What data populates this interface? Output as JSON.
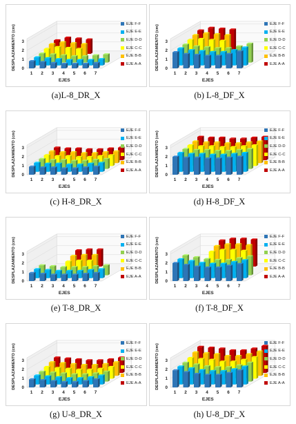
{
  "colors": {
    "EJE F-F": "#2e75b6",
    "EJE E-E": "#00b0f0",
    "EJE D-D": "#92d050",
    "EJE C-C": "#ffff00",
    "EJE B-B": "#ffc000",
    "EJE A-A": "#c00000"
  },
  "chart_data": [
    {
      "type": "bar",
      "caption": "(a)L-8_DR_X",
      "ylabel": "DESPLAZAMIENTO (cm)",
      "xlabel": "EJES",
      "y_ticks": [
        "0",
        "1",
        "2",
        "3"
      ],
      "categories": [
        "1",
        "2",
        "3",
        "4",
        "5",
        "6",
        "7"
      ],
      "legend": [
        "EJE F-F",
        "EJE E-E",
        "EJE D-D",
        "EJE C-C",
        "EJE B-B",
        "EJE A-A"
      ],
      "series": [
        {
          "name": "EJE F-F",
          "values": [
            0.8,
            0.7,
            0.6,
            0.5,
            0.5,
            0.5,
            0.6
          ]
        },
        {
          "name": "EJE E-E",
          "values": [
            0.9,
            0.8,
            0.7,
            0.6,
            0.6,
            0.6,
            0.7
          ]
        },
        {
          "name": "EJE D-D",
          "values": [
            1.0,
            0.9,
            0.8,
            0.7,
            0.7,
            0.8,
            0.9
          ]
        },
        {
          "name": "EJE C-C",
          "values": [
            1.2,
            1.4,
            1.3,
            1.2,
            0,
            0,
            0
          ]
        },
        {
          "name": "EJE B-B",
          "values": [
            1.4,
            1.6,
            1.5,
            1.4,
            0,
            0,
            0
          ]
        },
        {
          "name": "EJE A-A",
          "values": [
            1.5,
            1.8,
            1.7,
            1.6,
            0,
            0,
            0
          ]
        }
      ]
    },
    {
      "type": "bar",
      "caption": "(b) L-8_DF_X",
      "ylabel": "DESPLAZAMIENTO (cm)",
      "xlabel": "EJES",
      "y_ticks": [
        "0",
        "1",
        "2",
        "3"
      ],
      "categories": [
        "1",
        "2",
        "3",
        "4",
        "5",
        "6",
        "7"
      ],
      "legend": [
        "EJE F-F",
        "EJE E-E",
        "EJE D-D",
        "EJE C-C",
        "EJE B-B",
        "EJE A-A"
      ],
      "series": [
        {
          "name": "EJE F-F",
          "values": [
            1.8,
            1.6,
            1.5,
            1.4,
            1.4,
            1.6,
            1.9
          ]
        },
        {
          "name": "EJE E-E",
          "values": [
            1.9,
            1.7,
            1.6,
            1.5,
            1.5,
            1.7,
            2.0
          ]
        },
        {
          "name": "EJE D-D",
          "values": [
            2.0,
            1.8,
            1.7,
            1.6,
            1.6,
            1.8,
            2.1
          ]
        },
        {
          "name": "EJE C-C",
          "values": [
            2.2,
            2.3,
            2.2,
            2.1,
            0,
            0,
            0
          ]
        },
        {
          "name": "EJE B-B",
          "values": [
            2.4,
            2.6,
            2.5,
            2.4,
            0,
            0,
            0
          ]
        },
        {
          "name": "EJE A-A",
          "values": [
            2.6,
            2.9,
            2.8,
            2.7,
            0,
            0,
            0
          ]
        }
      ]
    },
    {
      "type": "bar",
      "caption": "(c) H-8_DR_X",
      "ylabel": "DESPLAZAMIENTO (cm)",
      "xlabel": "EJES",
      "y_ticks": [
        "0",
        "1",
        "2",
        "3"
      ],
      "categories": [
        "1",
        "2",
        "3",
        "4",
        "5",
        "6",
        "7"
      ],
      "legend": [
        "EJE F-F",
        "EJE E-E",
        "EJE D-D",
        "EJE C-C",
        "EJE B-B",
        "EJE A-A"
      ],
      "series": [
        {
          "name": "EJE F-F",
          "values": [
            0.9,
            0.8,
            0.8,
            0.7,
            0.7,
            0.8,
            0.9
          ]
        },
        {
          "name": "EJE E-E",
          "values": [
            1.0,
            0.9,
            0.9,
            0.8,
            0.8,
            0.9,
            1.0
          ]
        },
        {
          "name": "EJE D-D",
          "values": [
            1.1,
            1.0,
            1.0,
            0.9,
            0.9,
            1.0,
            1.1
          ]
        },
        {
          "name": "EJE C-C",
          "values": [
            1.2,
            1.1,
            1.1,
            1.0,
            1.0,
            1.1,
            1.2
          ]
        },
        {
          "name": "EJE B-B",
          "values": [
            1.3,
            1.2,
            1.2,
            1.1,
            1.1,
            1.2,
            1.3
          ]
        },
        {
          "name": "EJE A-A",
          "values": [
            1.4,
            1.3,
            1.3,
            1.2,
            1.2,
            1.3,
            1.4
          ]
        }
      ]
    },
    {
      "type": "bar",
      "caption": "(d) H-8_DF_X",
      "ylabel": "DESPLAZAMIENTO (cm)",
      "xlabel": "EJES",
      "y_ticks": [
        "0",
        "1",
        "2",
        "3"
      ],
      "categories": [
        "1",
        "2",
        "3",
        "4",
        "5",
        "6",
        "7"
      ],
      "legend": [
        "EJE F-F",
        "EJE E-E",
        "EJE D-D",
        "EJE C-C",
        "EJE B-B",
        "EJE A-A"
      ],
      "series": [
        {
          "name": "EJE F-F",
          "values": [
            2.0,
            1.9,
            1.9,
            1.8,
            1.8,
            1.9,
            2.0
          ]
        },
        {
          "name": "EJE E-E",
          "values": [
            2.1,
            2.0,
            2.0,
            1.9,
            1.9,
            2.0,
            2.1
          ]
        },
        {
          "name": "EJE D-D",
          "values": [
            2.2,
            2.1,
            2.1,
            2.0,
            2.0,
            2.1,
            2.2
          ]
        },
        {
          "name": "EJE C-C",
          "values": [
            2.3,
            2.2,
            2.2,
            2.1,
            2.1,
            2.2,
            2.3
          ]
        },
        {
          "name": "EJE B-B",
          "values": [
            2.4,
            2.3,
            2.3,
            2.2,
            2.2,
            2.3,
            2.4
          ]
        },
        {
          "name": "EJE A-A",
          "values": [
            2.6,
            2.5,
            2.5,
            2.4,
            2.4,
            2.5,
            2.6
          ]
        }
      ]
    },
    {
      "type": "bar",
      "caption": "(e) T-8_DR_X",
      "ylabel": "DESPLAZAMIENTO (cm)",
      "xlabel": "EJES",
      "y_ticks": [
        "0",
        "1",
        "2",
        "3"
      ],
      "categories": [
        "1",
        "2",
        "3",
        "4",
        "5",
        "6",
        "7"
      ],
      "legend": [
        "EJE F-F",
        "EJE E-E",
        "EJE D-D",
        "EJE C-C",
        "EJE B-B",
        "EJE A-A"
      ],
      "series": [
        {
          "name": "EJE F-F",
          "values": [
            0.9,
            0.8,
            0.7,
            0.7,
            0.7,
            0.8,
            0.9
          ]
        },
        {
          "name": "EJE E-E",
          "values": [
            1.0,
            0.9,
            0.8,
            0.8,
            0.8,
            0.9,
            1.0
          ]
        },
        {
          "name": "EJE D-D",
          "values": [
            1.1,
            1.0,
            0.9,
            0.9,
            0.9,
            1.0,
            1.1
          ]
        },
        {
          "name": "EJE C-C",
          "values": [
            0,
            0,
            1.2,
            1.3,
            1.3,
            0,
            0
          ]
        },
        {
          "name": "EJE B-B",
          "values": [
            0,
            0,
            1.5,
            1.6,
            1.6,
            0,
            0
          ]
        },
        {
          "name": "EJE A-A",
          "values": [
            0,
            0,
            1.8,
            1.9,
            1.9,
            0,
            0
          ]
        }
      ]
    },
    {
      "type": "bar",
      "caption": "(f) T-8_DF_X",
      "ylabel": "DESPLAZAMIENTO (cm)",
      "xlabel": "EJES",
      "y_ticks": [
        "0",
        "1",
        "2",
        "3"
      ],
      "categories": [
        "1",
        "2",
        "3",
        "4",
        "5",
        "6",
        "7"
      ],
      "legend": [
        "EJE F-F",
        "EJE E-E",
        "EJE D-D",
        "EJE C-C",
        "EJE B-B",
        "EJE A-A"
      ],
      "series": [
        {
          "name": "EJE F-F",
          "values": [
            2.0,
            1.8,
            1.6,
            1.5,
            1.5,
            1.7,
            1.9
          ]
        },
        {
          "name": "EJE E-E",
          "values": [
            2.1,
            1.9,
            1.7,
            1.6,
            1.6,
            1.8,
            2.0
          ]
        },
        {
          "name": "EJE D-D",
          "values": [
            2.2,
            2.0,
            1.8,
            1.7,
            1.7,
            1.9,
            2.1
          ]
        },
        {
          "name": "EJE C-C",
          "values": [
            0,
            0,
            2.3,
            2.5,
            2.5,
            2.4,
            0
          ]
        },
        {
          "name": "EJE B-B",
          "values": [
            0,
            0,
            2.6,
            2.8,
            2.8,
            2.7,
            0
          ]
        },
        {
          "name": "EJE A-A",
          "values": [
            0,
            0,
            2.9,
            3.1,
            3.1,
            3.0,
            0
          ]
        }
      ]
    },
    {
      "type": "bar",
      "caption": "(g) U-8_DR_X",
      "ylabel": "DESPLAZAMIENTO (cm)",
      "xlabel": "EJES",
      "y_ticks": [
        "0",
        "1",
        "2",
        "3"
      ],
      "categories": [
        "1",
        "2",
        "3",
        "4",
        "5",
        "6",
        "7"
      ],
      "legend": [
        "EJE F-F",
        "EJE E-E",
        "EJE D-D",
        "EJE C-C",
        "EJE B-B",
        "EJE A-A"
      ],
      "series": [
        {
          "name": "EJE F-F",
          "values": [
            0.9,
            0.8,
            0.7,
            0.6,
            0.6,
            0.7,
            0.9
          ]
        },
        {
          "name": "EJE E-E",
          "values": [
            1.0,
            0.9,
            0.8,
            0.7,
            0.7,
            0.8,
            1.0
          ]
        },
        {
          "name": "EJE D-D",
          "values": [
            1.1,
            1.0,
            0.9,
            0.8,
            0.8,
            0.9,
            1.1
          ]
        },
        {
          "name": "EJE C-C",
          "values": [
            1.3,
            1.2,
            1.1,
            1.0,
            1.0,
            1.1,
            1.3
          ]
        },
        {
          "name": "EJE B-B",
          "values": [
            1.5,
            1.4,
            1.3,
            1.2,
            1.2,
            1.3,
            1.5
          ]
        },
        {
          "name": "EJE A-A",
          "values": [
            1.7,
            1.6,
            1.5,
            1.4,
            1.4,
            1.5,
            1.7
          ]
        }
      ]
    },
    {
      "type": "bar",
      "caption": "(h) U-8_DF_X",
      "ylabel": "DESPLAZAMIENTO (cm)",
      "xlabel": "EJES",
      "y_ticks": [
        "0",
        "1",
        "2",
        "3"
      ],
      "categories": [
        "1",
        "2",
        "3",
        "4",
        "5",
        "6",
        "7"
      ],
      "legend": [
        "EJE F-F",
        "EJE E-E",
        "EJE D-D",
        "EJE C-C",
        "EJE B-B",
        "EJE A-A"
      ],
      "series": [
        {
          "name": "EJE F-F",
          "values": [
            1.9,
            1.7,
            1.5,
            1.4,
            1.4,
            1.6,
            1.9
          ]
        },
        {
          "name": "EJE E-E",
          "values": [
            2.0,
            1.8,
            1.6,
            1.5,
            1.5,
            1.7,
            2.0
          ]
        },
        {
          "name": "EJE D-D",
          "values": [
            2.1,
            1.9,
            1.7,
            1.6,
            1.6,
            1.8,
            2.1
          ]
        },
        {
          "name": "EJE C-C",
          "values": [
            2.3,
            2.2,
            2.1,
            1.9,
            1.9,
            2.1,
            2.4
          ]
        },
        {
          "name": "EJE B-B",
          "values": [
            2.6,
            2.5,
            2.4,
            2.2,
            2.2,
            2.4,
            2.7
          ]
        },
        {
          "name": "EJE A-A",
          "values": [
            2.9,
            2.8,
            2.7,
            2.5,
            2.5,
            2.7,
            3.0
          ]
        }
      ]
    }
  ]
}
